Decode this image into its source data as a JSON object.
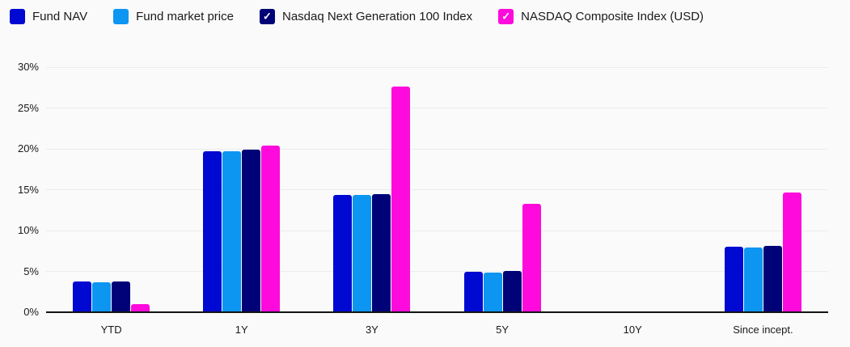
{
  "legend": {
    "items": [
      {
        "label": "Fund NAV",
        "color": "#0009d2",
        "checked": false
      },
      {
        "label": "Fund market price",
        "color": "#0c96f2",
        "checked": false
      },
      {
        "label": "Nasdaq Next Generation 100 Index",
        "color": "#000377",
        "checked": true
      },
      {
        "label": "NASDAQ Composite Index (USD)",
        "color": "#ff0adc",
        "checked": true
      }
    ]
  },
  "chart_data": {
    "type": "bar",
    "categories": [
      "YTD",
      "1Y",
      "3Y",
      "5Y",
      "10Y",
      "Since incept."
    ],
    "series": [
      {
        "name": "Fund NAV",
        "color": "#0009d2",
        "values": [
          3.7,
          19.6,
          14.3,
          4.9,
          null,
          7.9
        ]
      },
      {
        "name": "Fund market price",
        "color": "#0c96f2",
        "values": [
          3.6,
          19.6,
          14.3,
          4.8,
          null,
          7.8
        ]
      },
      {
        "name": "Nasdaq Next Generation 100 Index",
        "color": "#000377",
        "values": [
          3.7,
          19.8,
          14.4,
          5.0,
          null,
          8.0
        ]
      },
      {
        "name": "NASDAQ Composite Index (USD)",
        "color": "#ff0adc",
        "values": [
          0.9,
          20.3,
          27.5,
          13.2,
          null,
          14.6
        ]
      }
    ],
    "title": "",
    "xlabel": "",
    "ylabel": "",
    "ylim": [
      0,
      30
    ],
    "y_tick_labels": [
      "30%",
      "25%",
      "20%",
      "15%",
      "10%",
      "5%",
      "0%"
    ],
    "y_tick_values": [
      30,
      25,
      20,
      15,
      10,
      5,
      0
    ],
    "grid": true,
    "legend_position": "top"
  },
  "colors": {
    "background": "#fafafa",
    "gridline": "#ececec",
    "axis_line": "#141414",
    "text": "#1a1a1a"
  }
}
